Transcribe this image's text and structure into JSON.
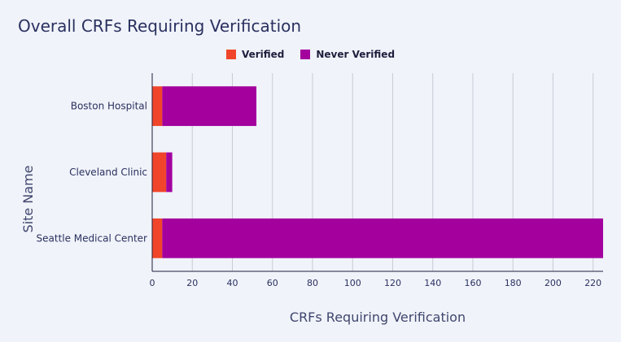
{
  "chart_data": {
    "type": "bar",
    "orientation": "horizontal",
    "stacked": true,
    "title": "Overall CRFs Requiring Verification",
    "xlabel": "CRFs Requiring Verification",
    "ylabel": "Site Name",
    "categories": [
      "Boston Hospital",
      "Cleveland Clinic",
      "Seattle Medical Center"
    ],
    "series": [
      {
        "name": "Verified",
        "color": "#f0452a",
        "values": [
          5,
          7,
          5
        ]
      },
      {
        "name": "Never Verified",
        "color": "#a3009e",
        "values": [
          47,
          3,
          220
        ]
      }
    ],
    "xlim": [
      0,
      225
    ],
    "xticks": [
      0,
      20,
      40,
      60,
      80,
      100,
      120,
      140,
      160,
      180,
      200,
      220
    ],
    "grid": true,
    "legend_position": "top-center"
  }
}
